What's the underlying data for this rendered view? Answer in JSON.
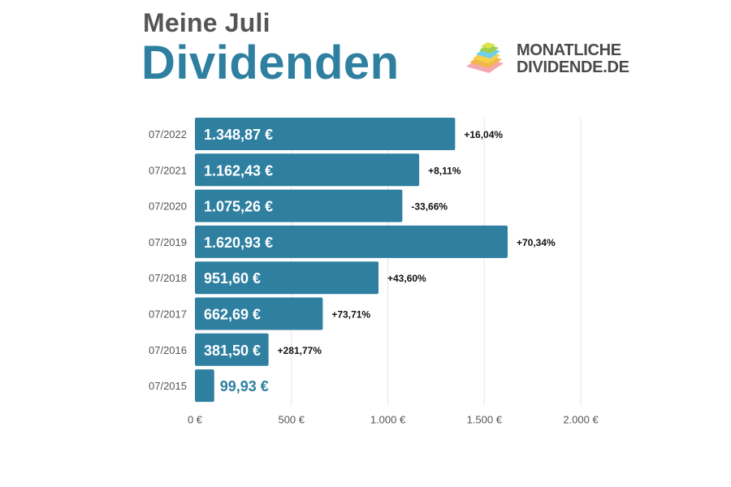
{
  "header": {
    "subtitle": "Meine Juli",
    "title": "Dividenden"
  },
  "logo": {
    "line1": "MONATLICHE",
    "line2": "DIVIDENDE.DE",
    "colors": [
      "#f4a7b0",
      "#f2b84b",
      "#f5d04a",
      "#6ecff0",
      "#9ed04e",
      "#d8e44a"
    ]
  },
  "colors": {
    "bar": "#2e7fa0",
    "bar_label_inside": "#ffffff",
    "bar_label_outside": "#2e7fa0",
    "grid": "#e5e5e5",
    "category_text": "#555555",
    "change_text": "#111111"
  },
  "chart_data": {
    "type": "bar",
    "orientation": "horizontal",
    "categories": [
      "07/2022",
      "07/2021",
      "07/2020",
      "07/2019",
      "07/2018",
      "07/2017",
      "07/2016",
      "07/2015"
    ],
    "values": [
      1348.87,
      1162.43,
      1075.26,
      1620.93,
      951.6,
      662.69,
      381.5,
      99.93
    ],
    "value_labels": [
      "1.348,87 €",
      "1.162,43 €",
      "1.075,26 €",
      "1.620,93 €",
      "951,60 €",
      "662,69 €",
      "381,50 €",
      "99,93 €"
    ],
    "change_labels": [
      "+16,04%",
      "+8,11%",
      "-33,66%",
      "+70,34%",
      "+43,60%",
      "+73,71%",
      "+281,77%",
      ""
    ],
    "xlim": [
      0,
      2000
    ],
    "xticks": [
      0,
      500,
      1000,
      1500,
      2000
    ],
    "xtick_labels": [
      "0 €",
      "500 €",
      "1.000 €",
      "1.500 €",
      "2.000 €"
    ],
    "grid": true,
    "legend": "none"
  }
}
